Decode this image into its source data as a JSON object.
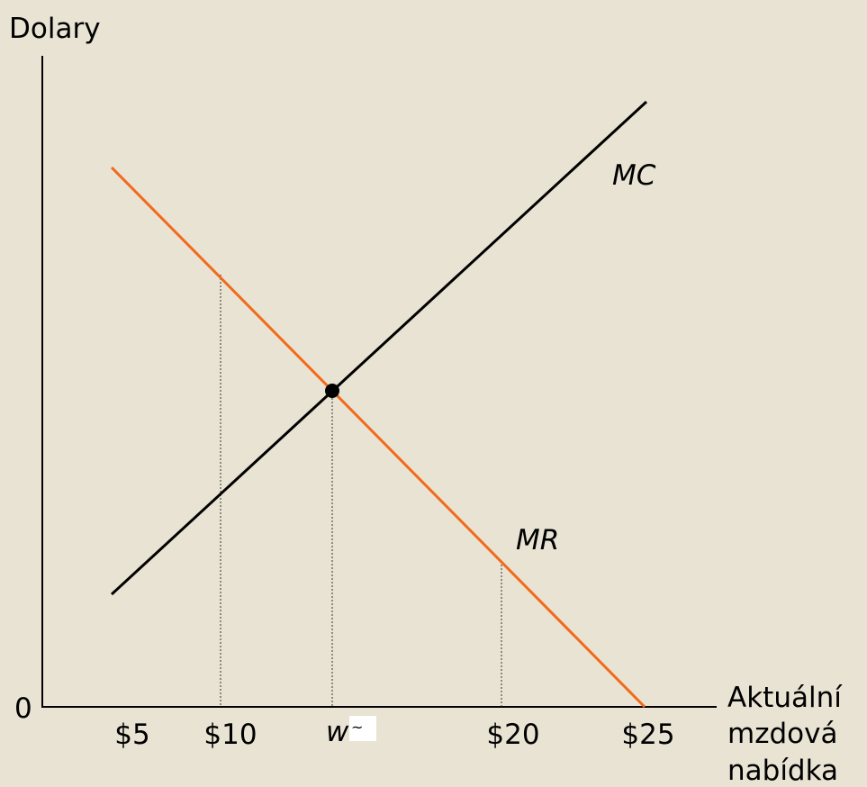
{
  "axes": {
    "y_label": "Dolary",
    "origin": "0",
    "x_label": [
      "Aktuální",
      "mzdová",
      "nabídka"
    ]
  },
  "x_ticks": [
    "$5",
    "$10",
    {
      "main": "w",
      "mark": "~"
    },
    "$20",
    "$25"
  ],
  "curves": {
    "mc": "MC",
    "mr": "MR"
  }
}
